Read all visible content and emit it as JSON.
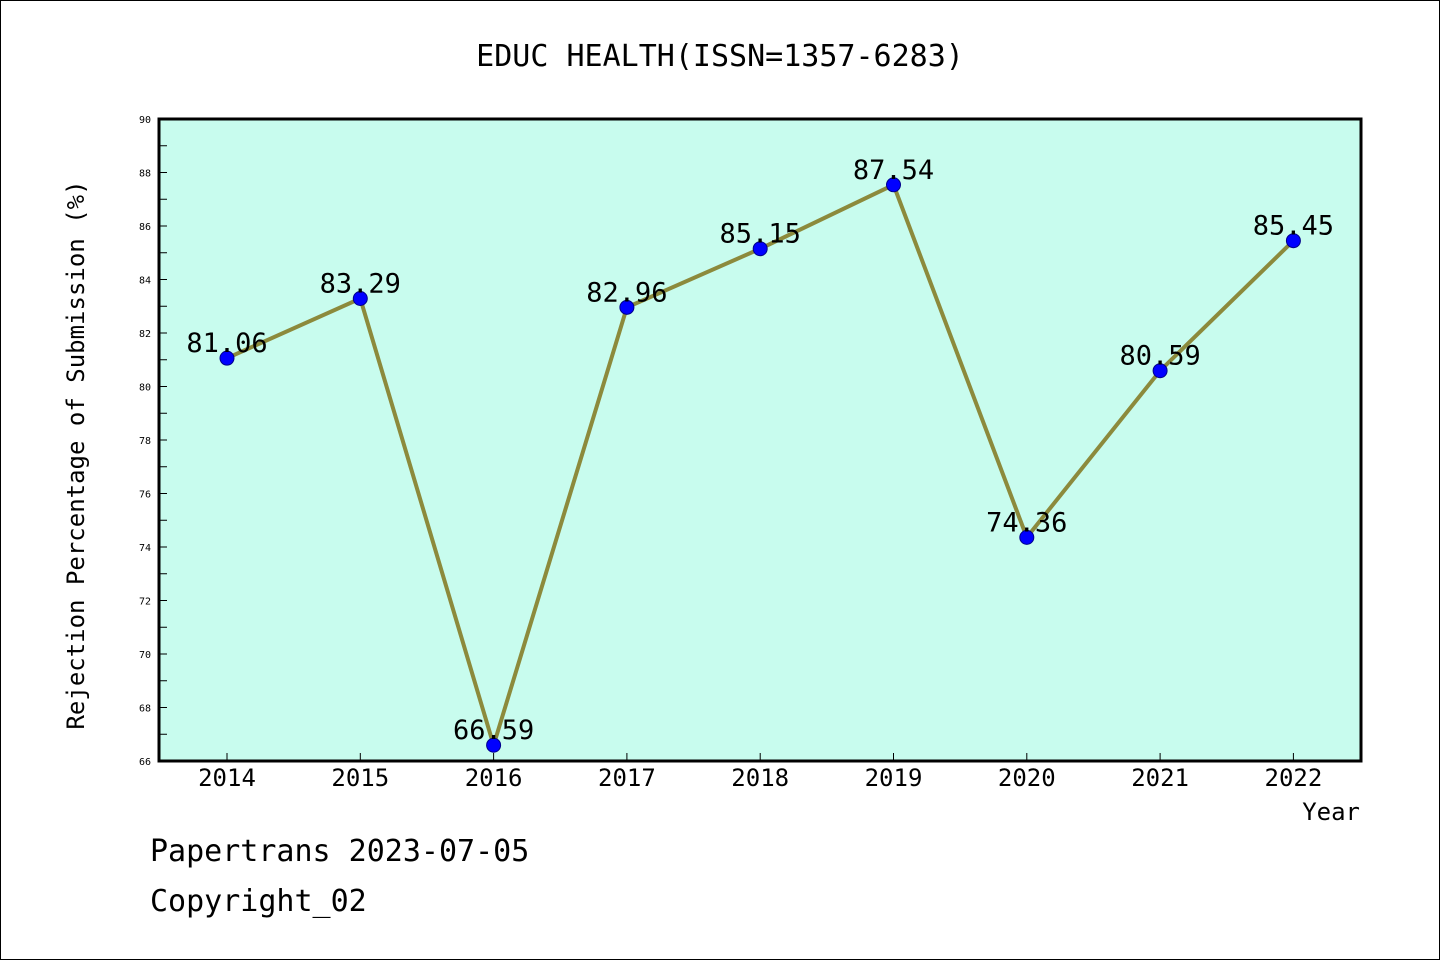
{
  "chart_data": {
    "type": "line",
    "title": "EDUC HEALTH(ISSN=1357-6283)",
    "xlabel": "Year",
    "ylabel": "Rejection Percentage of Submission (%)",
    "categories": [
      "2014",
      "2015",
      "2016",
      "2017",
      "2018",
      "2019",
      "2020",
      "2021",
      "2022"
    ],
    "values": [
      81.06,
      83.29,
      66.59,
      82.96,
      85.15,
      87.54,
      74.36,
      80.59,
      85.45
    ],
    "value_labels": [
      "81.06",
      "83.29",
      "66.59",
      "82.96",
      "85.15",
      "87.54",
      "74.36",
      "80.59",
      "85.45"
    ],
    "ylim": [
      66,
      90
    ],
    "yticks": [
      "66",
      "68",
      "70",
      "72",
      "74",
      "76",
      "78",
      "80",
      "82",
      "84",
      "86",
      "88",
      "90"
    ],
    "grid": false,
    "legend": "none",
    "colors": {
      "plot_background": "#c8fcee",
      "line": "#8c8a3c",
      "marker": "#0000ff",
      "marker_edge": "#00008b"
    }
  },
  "footer": {
    "line1": "Papertrans 2023-07-05",
    "line2": "Copyright_02"
  }
}
